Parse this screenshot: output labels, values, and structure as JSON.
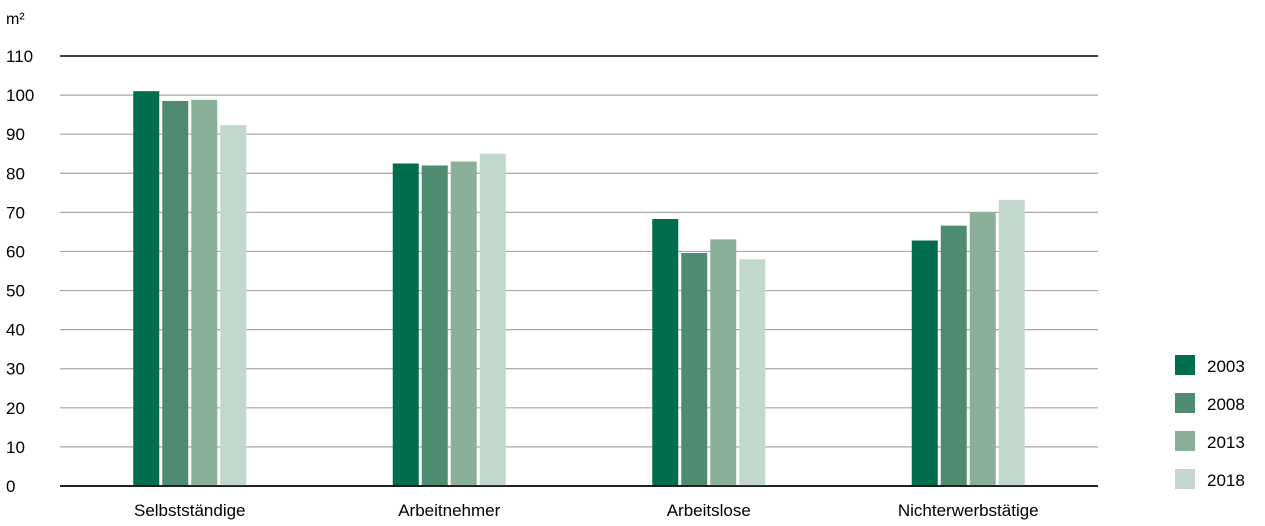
{
  "chart_data": {
    "type": "bar",
    "title": "",
    "ylabel": "m²",
    "xlabel": "",
    "ylim": [
      0,
      110
    ],
    "yticks": [
      0,
      10,
      20,
      30,
      40,
      50,
      60,
      70,
      80,
      90,
      100,
      110
    ],
    "grid": true,
    "legend_position": "bottom-right",
    "categories": [
      "Selbstständige",
      "Arbeitnehmer",
      "Arbeitslose",
      "Nichterwerbstätige"
    ],
    "series": [
      {
        "name": "2003",
        "color": "#006e4e",
        "values": [
          101,
          82.5,
          68.3,
          62.8
        ]
      },
      {
        "name": "2008",
        "color": "#4f8b70",
        "values": [
          98.5,
          82,
          59.6,
          66.6
        ]
      },
      {
        "name": "2013",
        "color": "#8bb09a",
        "values": [
          98.8,
          83,
          63.1,
          70.1
        ]
      },
      {
        "name": "2018",
        "color": "#c3d8cc",
        "values": [
          92.3,
          85,
          58,
          73.2
        ]
      }
    ]
  }
}
